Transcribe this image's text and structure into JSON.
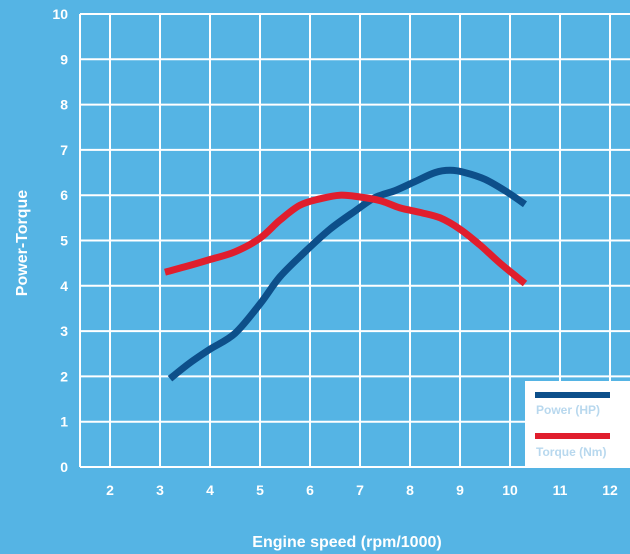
{
  "chart_data": {
    "type": "line",
    "xlabel": "Engine speed (rpm/1000)",
    "ylabel": "Power-Torque",
    "xlim": [
      1.4,
      12.4
    ],
    "ylim": [
      0,
      10
    ],
    "x_ticks": [
      "2",
      "3",
      "4",
      "5",
      "6",
      "7",
      "8",
      "9",
      "10",
      "11",
      "12"
    ],
    "y_ticks": [
      "0",
      "1",
      "2",
      "3",
      "4",
      "5",
      "6",
      "7",
      "8",
      "9",
      "10"
    ],
    "grid": true,
    "legend_position": "bottom-right",
    "series": [
      {
        "name": "Power (HP)",
        "color": "#0d4f8a",
        "x": [
          3.2,
          3.6,
          4.0,
          4.5,
          5.0,
          5.4,
          5.9,
          6.4,
          6.9,
          7.3,
          7.7,
          8.1,
          8.5,
          8.8,
          9.1,
          9.5,
          9.9,
          10.3
        ],
        "y": [
          1.95,
          2.3,
          2.6,
          2.95,
          3.6,
          4.2,
          4.75,
          5.25,
          5.65,
          5.95,
          6.1,
          6.3,
          6.5,
          6.55,
          6.5,
          6.35,
          6.1,
          5.8
        ]
      },
      {
        "name": "Torque (Nm)",
        "color": "#e01e2d",
        "x": [
          3.1,
          3.5,
          4.0,
          4.5,
          5.0,
          5.4,
          5.8,
          6.2,
          6.6,
          7.0,
          7.4,
          7.8,
          8.2,
          8.6,
          9.0,
          9.4,
          9.8,
          10.3
        ],
        "y": [
          4.3,
          4.42,
          4.58,
          4.75,
          5.05,
          5.45,
          5.78,
          5.92,
          6.0,
          5.96,
          5.88,
          5.72,
          5.62,
          5.5,
          5.25,
          4.9,
          4.5,
          4.05
        ]
      }
    ]
  }
}
